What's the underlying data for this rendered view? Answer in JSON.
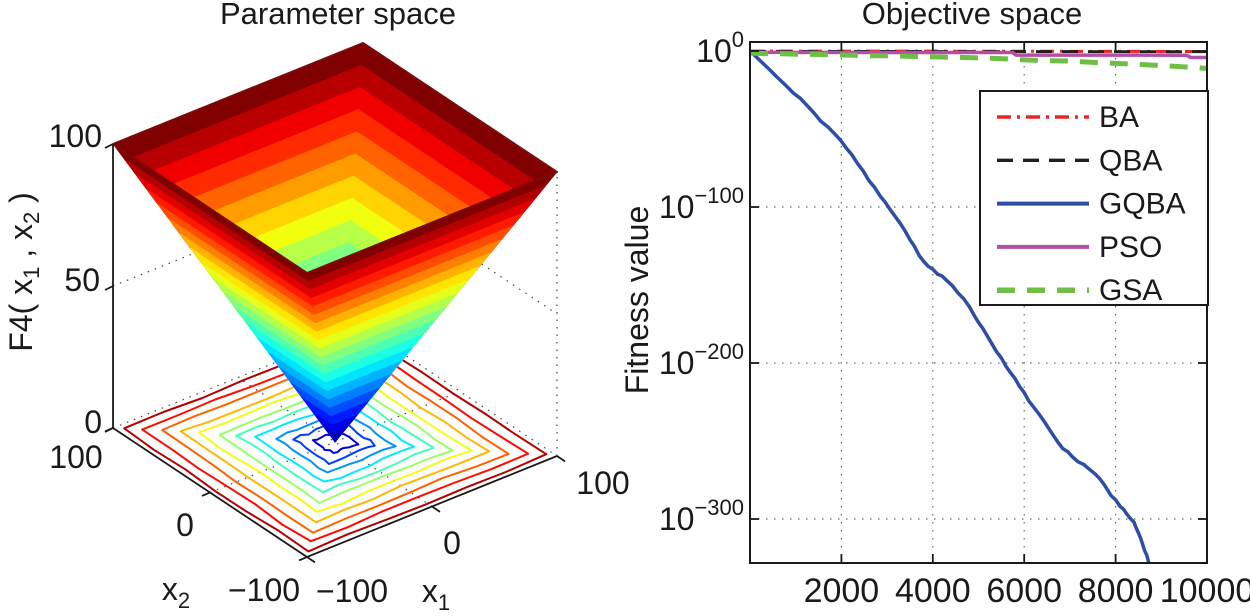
{
  "figure": {
    "background": "#ffffff"
  },
  "left_plot": {
    "title": "Parameter space",
    "zlabel": {
      "pre": "F4( x",
      "sub1": "1",
      "mid": " , x",
      "sub2": "2",
      "post": " )"
    },
    "x1_label": {
      "base": "x",
      "sub": "1"
    },
    "x2_label": {
      "base": "x",
      "sub": "2"
    },
    "z_ticks": [
      "100",
      "50",
      "0"
    ],
    "x2_ticks": [
      "100",
      "0",
      "−100"
    ],
    "x1_ticks": [
      "−100",
      "0",
      "100"
    ]
  },
  "right_plot": {
    "title": "Objective space",
    "ylabel": "Fitness value",
    "y_base": "10",
    "y_tick_sups": [
      "0",
      "−100",
      "−200",
      "−300"
    ],
    "x_ticks": [
      "2000",
      "4000",
      "6000",
      "8000",
      "10000"
    ],
    "legend": [
      {
        "label": "BA",
        "color": "#e8262a",
        "dash": "14 6 3 6",
        "width": 3
      },
      {
        "label": "QBA",
        "color": "#1f1f1f",
        "dash": "16 10",
        "width": 2.8
      },
      {
        "label": "GQBA",
        "color": "#2e4da6",
        "dash": "",
        "width": 3.5
      },
      {
        "label": "PSO",
        "color": "#b34fa5",
        "dash": "",
        "width": 3.5
      },
      {
        "label": "GSA",
        "color": "#6fbf47",
        "dash": "18 12",
        "width": 5
      }
    ]
  },
  "chart_data": [
    {
      "type": "surface",
      "title": "Parameter space",
      "zlabel": "F4( x1 , x2 )",
      "x1_range": [
        -100,
        100
      ],
      "x2_range": [
        -100,
        100
      ],
      "z_range": [
        0,
        100
      ],
      "z_tick_values": [
        0,
        50,
        100
      ],
      "surface_shape": "inverted square pyramid funnel with minimum 0 at (x1,x2)=(0,0) and value 100 at the domain edges",
      "colormap": "jet (red high values, blue low values)",
      "floor_contour": {
        "rings": 11,
        "level_scales": [
          0.95,
          0.865,
          0.78,
          0.695,
          0.61,
          0.525,
          0.44,
          0.355,
          0.27,
          0.185,
          0.1
        ]
      }
    },
    {
      "type": "line",
      "title": "Objective space",
      "ylabel": "Fitness value",
      "x_range": [
        0,
        10000
      ],
      "y_scale": "log10",
      "ylim_exponents": [
        0,
        -330
      ],
      "grid": "dotted at x=2000,4000,6000,8000 and y=1e-100,1e-200,1e-300",
      "legend_position": "upper right",
      "series": [
        {
          "name": "BA",
          "points_x_exponent": [
            [
              0,
              -0.05
            ],
            [
              5000,
              -0.15
            ],
            [
              10000,
              -0.3
            ]
          ]
        },
        {
          "name": "QBA",
          "points_x_exponent": [
            [
              0,
              -0.2
            ],
            [
              5000,
              -0.3
            ],
            [
              10000,
              -0.45
            ]
          ]
        },
        {
          "name": "GQBA",
          "points_x_exponent": [
            [
              0,
              0
            ],
            [
              250,
              -7
            ],
            [
              600,
              -17
            ],
            [
              950,
              -27
            ],
            [
              1250,
              -35
            ],
            [
              1550,
              -45
            ],
            [
              1850,
              -53
            ],
            [
              2100,
              -62
            ],
            [
              2350,
              -72
            ],
            [
              2600,
              -83
            ],
            [
              2850,
              -93
            ],
            [
              3050,
              -101
            ],
            [
              3300,
              -111
            ],
            [
              3500,
              -121
            ],
            [
              3700,
              -131
            ],
            [
              3900,
              -138
            ],
            [
              4100,
              -143
            ],
            [
              4300,
              -147
            ],
            [
              4550,
              -155
            ],
            [
              4800,
              -164
            ],
            [
              5000,
              -174
            ],
            [
              5200,
              -183
            ],
            [
              5400,
              -193
            ],
            [
              5600,
              -202
            ],
            [
              5800,
              -210
            ],
            [
              6000,
              -219
            ],
            [
              6200,
              -228
            ],
            [
              6450,
              -238
            ],
            [
              6650,
              -247
            ],
            [
              6850,
              -255
            ],
            [
              7050,
              -260
            ],
            [
              7300,
              -265
            ],
            [
              7550,
              -271
            ],
            [
              7750,
              -278
            ],
            [
              7900,
              -285
            ],
            [
              8100,
              -292
            ],
            [
              8250,
              -297
            ],
            [
              8400,
              -302
            ],
            [
              8500,
              -309
            ],
            [
              8600,
              -317
            ],
            [
              8680,
              -323
            ],
            [
              8750,
              -330
            ]
          ]
        },
        {
          "name": "PSO",
          "points_x_exponent": [
            [
              0,
              -0.9
            ],
            [
              5750,
              -0.95
            ],
            [
              5820,
              -2.6
            ],
            [
              9550,
              -2.7
            ],
            [
              9640,
              -4.1
            ],
            [
              10000,
              -4.15
            ]
          ]
        },
        {
          "name": "GSA",
          "points_x_exponent": [
            [
              0,
              -1.3
            ],
            [
              300,
              -1.7
            ],
            [
              700,
              -1.7
            ],
            [
              1000,
              -2.1
            ],
            [
              1400,
              -2.2
            ],
            [
              1800,
              -2.5
            ],
            [
              2200,
              -2.6
            ],
            [
              2600,
              -3.0
            ],
            [
              3000,
              -3.1
            ],
            [
              3400,
              -3.4
            ],
            [
              3800,
              -3.6
            ],
            [
              4200,
              -3.9
            ],
            [
              4600,
              -4.1
            ],
            [
              5000,
              -4.4
            ],
            [
              5400,
              -4.8
            ],
            [
              5800,
              -5.4
            ],
            [
              6200,
              -5.9
            ],
            [
              6600,
              -6.2
            ],
            [
              7000,
              -6.5
            ],
            [
              7400,
              -7.1
            ],
            [
              7800,
              -7.7
            ],
            [
              8200,
              -8.2
            ],
            [
              8600,
              -8.7
            ],
            [
              9000,
              -9.3
            ],
            [
              9400,
              -10.0
            ],
            [
              9800,
              -10.7
            ],
            [
              10000,
              -11.2
            ]
          ]
        }
      ]
    }
  ]
}
